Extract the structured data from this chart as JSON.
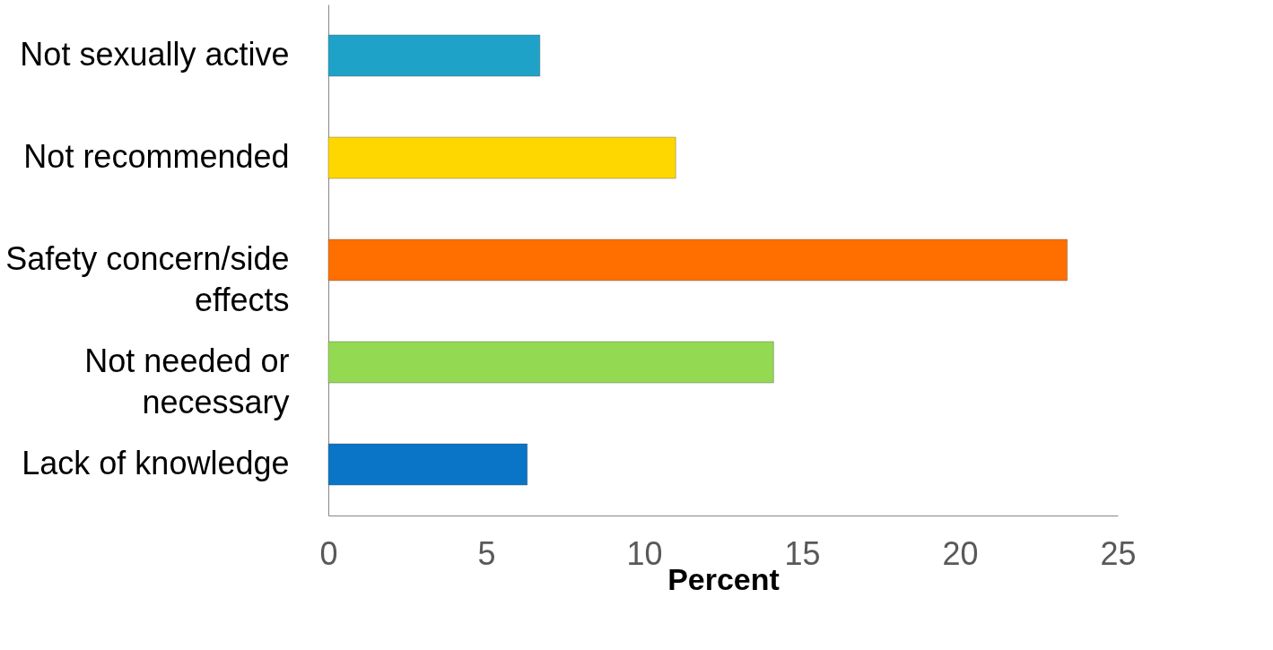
{
  "chart_data": {
    "type": "bar",
    "orientation": "horizontal",
    "xlabel": "Percent",
    "categories": [
      "Not sexually active",
      "Not recommended",
      "Safety concern/side effects",
      "Not needed or necessary",
      "Lack of knowledge"
    ],
    "values": [
      6.7,
      11.0,
      23.4,
      14.1,
      6.3
    ],
    "colors": [
      "#1fa2c8",
      "#ffd700",
      "#ff6f00",
      "#94d952",
      "#0a74c6"
    ],
    "xlim": [
      0,
      25
    ],
    "xticks": [
      0,
      5,
      10,
      15,
      20,
      25
    ],
    "grid": false
  }
}
